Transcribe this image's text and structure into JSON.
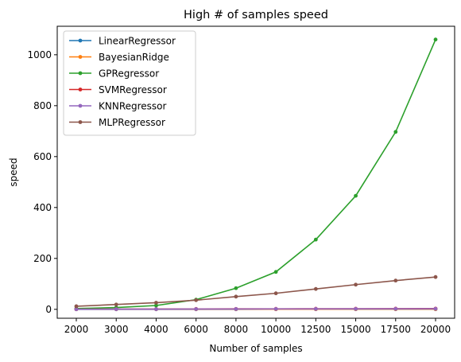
{
  "chart_data": {
    "type": "line",
    "title": "High # of samples speed",
    "xlabel": "Number of samples",
    "ylabel": "speed",
    "x": [
      "2000",
      "3000",
      "4000",
      "6000",
      "8000",
      "10000",
      "12500",
      "15000",
      "17500",
      "20000"
    ],
    "ylim": [
      -35,
      1112
    ],
    "yticks": [
      0,
      200,
      400,
      600,
      800,
      1000
    ],
    "grid": false,
    "legend": "upper-left",
    "series": [
      {
        "name": "LinearRegressor",
        "color": "#1f77b4",
        "values": [
          0.1,
          0.1,
          0.1,
          0.1,
          0.1,
          0.2,
          0.2,
          0.2,
          0.3,
          0.3
        ]
      },
      {
        "name": "BayesianRidge",
        "color": "#ff7f0e",
        "values": [
          0.2,
          0.2,
          0.3,
          0.3,
          0.4,
          0.4,
          0.5,
          0.6,
          0.7,
          0.8
        ]
      },
      {
        "name": "GPRegressor",
        "color": "#2ca02c",
        "values": [
          3,
          7,
          15,
          38,
          83,
          147,
          274,
          446,
          697,
          1060
        ]
      },
      {
        "name": "SVMRegressor",
        "color": "#d62728",
        "values": [
          0.5,
          0.8,
          1.2,
          1.5,
          1.8,
          2.0,
          2.3,
          2.5,
          2.8,
          3.0
        ]
      },
      {
        "name": "KNNRegressor",
        "color": "#9467bd",
        "values": [
          0.5,
          0.6,
          0.8,
          1.0,
          1.2,
          1.4,
          1.6,
          1.8,
          2.0,
          2.2
        ]
      },
      {
        "name": "MLPRegressor",
        "color": "#8c564b",
        "values": [
          12,
          19,
          26,
          36,
          50,
          63,
          80,
          97,
          113,
          127
        ]
      }
    ]
  }
}
